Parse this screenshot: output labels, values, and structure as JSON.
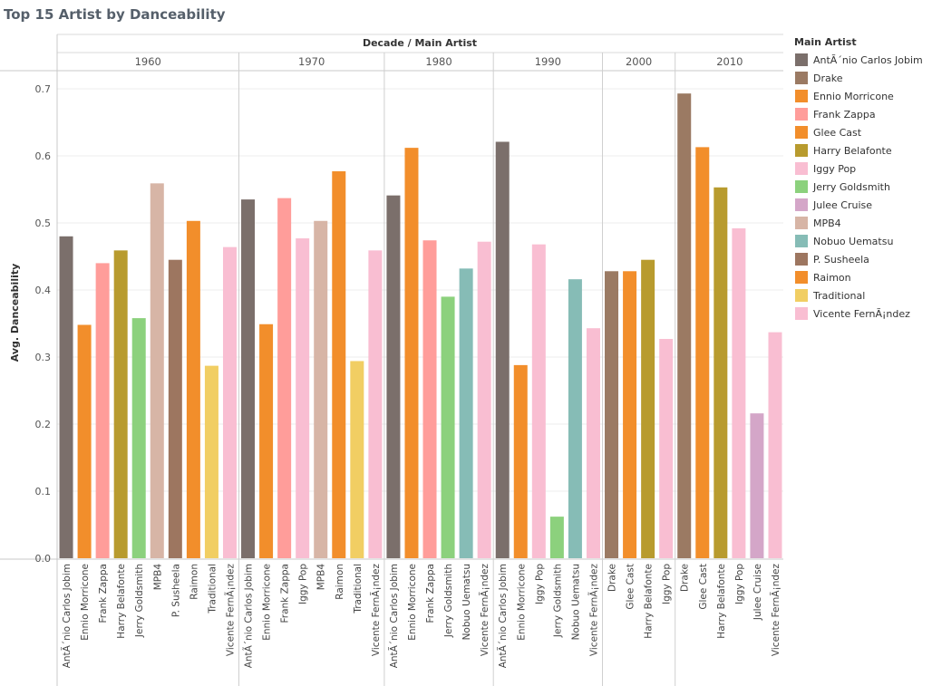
{
  "title": "Top 15 Artist by Danceability",
  "chart_data": {
    "type": "bar",
    "title": "Top 15 Artist by Danceability",
    "column_header": "Decade / Main Artist",
    "ylabel": "Avg. Danceability",
    "ylim": [
      0,
      0.7
    ],
    "yticks": [
      "0.0",
      "0.1",
      "0.2",
      "0.3",
      "0.4",
      "0.5",
      "0.6",
      "0.7"
    ],
    "grid": true,
    "legend_title": "Main Artist",
    "legend_position": "right",
    "legend": [
      {
        "name": "AntÃ´nio Carlos Jobim",
        "color": "#7b6f6b"
      },
      {
        "name": "Drake",
        "color": "#9b7a63"
      },
      {
        "name": "Ennio Morricone",
        "color": "#f28e2b"
      },
      {
        "name": "Frank Zappa",
        "color": "#ff9d9a"
      },
      {
        "name": "Glee Cast",
        "color": "#f28e2b"
      },
      {
        "name": "Harry Belafonte",
        "color": "#b89b2e"
      },
      {
        "name": "Iggy Pop",
        "color": "#f9bed2"
      },
      {
        "name": "Jerry Goldsmith",
        "color": "#8cd17d"
      },
      {
        "name": "Julee Cruise",
        "color": "#d4a6c8"
      },
      {
        "name": "MPB4",
        "color": "#d7b5a6"
      },
      {
        "name": "Nobuo Uematsu",
        "color": "#86bcb6"
      },
      {
        "name": "P. Susheela",
        "color": "#9d7660"
      },
      {
        "name": "Raimon",
        "color": "#f28e2b"
      },
      {
        "name": "Traditional",
        "color": "#f1ce63"
      },
      {
        "name": "Vicente FernÃ¡ndez",
        "color": "#f9bed2"
      }
    ],
    "decades": [
      {
        "label": "1960",
        "bars": [
          {
            "artist": "AntÃ´nio Carlos Jobim",
            "value": 0.48
          },
          {
            "artist": "Ennio Morricone",
            "value": 0.348
          },
          {
            "artist": "Frank Zappa",
            "value": 0.44
          },
          {
            "artist": "Harry Belafonte",
            "value": 0.459
          },
          {
            "artist": "Jerry Goldsmith",
            "value": 0.358
          },
          {
            "artist": "MPB4",
            "value": 0.559
          },
          {
            "artist": "P. Susheela",
            "value": 0.445
          },
          {
            "artist": "Raimon",
            "value": 0.503
          },
          {
            "artist": "Traditional",
            "value": 0.287
          },
          {
            "artist": "Vicente FernÃ¡ndez",
            "value": 0.464
          }
        ]
      },
      {
        "label": "1970",
        "bars": [
          {
            "artist": "AntÃ´nio Carlos Jobim",
            "value": 0.535
          },
          {
            "artist": "Ennio Morricone",
            "value": 0.349
          },
          {
            "artist": "Frank Zappa",
            "value": 0.537
          },
          {
            "artist": "Iggy Pop",
            "value": 0.477
          },
          {
            "artist": "MPB4",
            "value": 0.503
          },
          {
            "artist": "Raimon",
            "value": 0.577
          },
          {
            "artist": "Traditional",
            "value": 0.294
          },
          {
            "artist": "Vicente FernÃ¡ndez",
            "value": 0.459
          }
        ]
      },
      {
        "label": "1980",
        "bars": [
          {
            "artist": "AntÃ´nio Carlos Jobim",
            "value": 0.541
          },
          {
            "artist": "Ennio Morricone",
            "value": 0.612
          },
          {
            "artist": "Frank Zappa",
            "value": 0.474
          },
          {
            "artist": "Jerry Goldsmith",
            "value": 0.39
          },
          {
            "artist": "Nobuo Uematsu",
            "value": 0.432
          },
          {
            "artist": "Vicente FernÃ¡ndez",
            "value": 0.472
          }
        ]
      },
      {
        "label": "1990",
        "bars": [
          {
            "artist": "AntÃ´nio Carlos Jobim",
            "value": 0.621
          },
          {
            "artist": "Ennio Morricone",
            "value": 0.288
          },
          {
            "artist": "Iggy Pop",
            "value": 0.468
          },
          {
            "artist": "Jerry Goldsmith",
            "value": 0.062
          },
          {
            "artist": "Nobuo Uematsu",
            "value": 0.416
          },
          {
            "artist": "Vicente FernÃ¡ndez",
            "value": 0.343
          }
        ]
      },
      {
        "label": "2000",
        "bars": [
          {
            "artist": "Drake",
            "value": 0.428
          },
          {
            "artist": "Glee Cast",
            "value": 0.428
          },
          {
            "artist": "Harry Belafonte",
            "value": 0.445
          },
          {
            "artist": "Iggy Pop",
            "value": 0.327
          }
        ]
      },
      {
        "label": "2010",
        "bars": [
          {
            "artist": "Drake",
            "value": 0.693
          },
          {
            "artist": "Glee Cast",
            "value": 0.613
          },
          {
            "artist": "Harry Belafonte",
            "value": 0.553
          },
          {
            "artist": "Iggy Pop",
            "value": 0.492
          },
          {
            "artist": "Julee Cruise",
            "value": 0.216
          },
          {
            "artist": "Vicente FernÃ¡ndez",
            "value": 0.337
          }
        ]
      }
    ]
  }
}
